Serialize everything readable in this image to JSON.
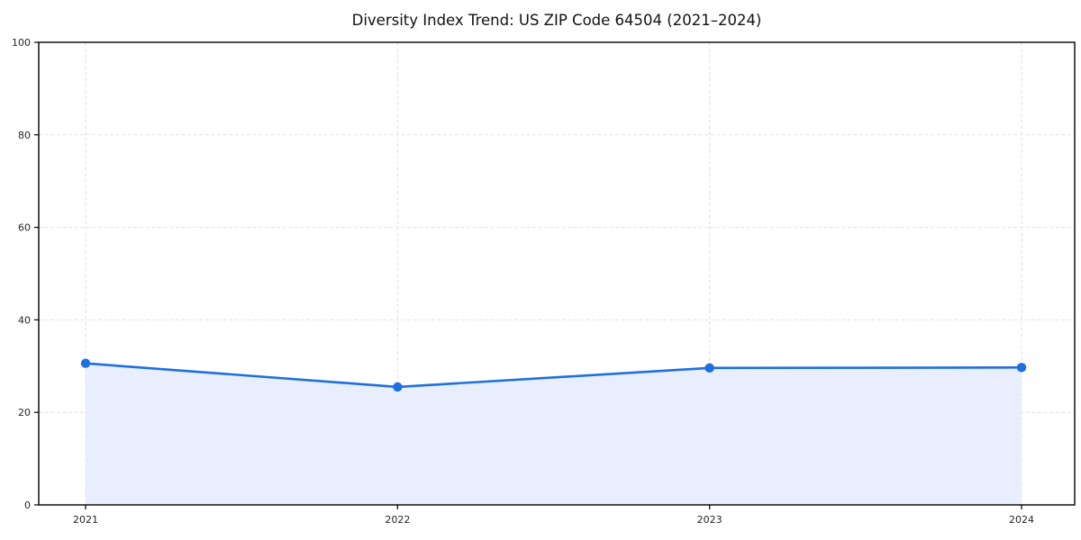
{
  "figure": {
    "background": "#ffffff"
  },
  "chart_data": {
    "type": "area",
    "title": "Diversity Index Trend: US ZIP Code 64504 (2021–2024)",
    "categories": [
      "2021",
      "2022",
      "2023",
      "2024"
    ],
    "series": [
      {
        "name": "Diversity Index",
        "values": [
          30.6,
          25.5,
          29.6,
          29.7
        ]
      }
    ],
    "xlabel": "",
    "ylabel": "",
    "ylim": [
      0,
      100
    ],
    "yticks": [
      0,
      20,
      40,
      60,
      80,
      100
    ],
    "grid": "dashed-both-axes",
    "legend": "none",
    "style": {
      "line_color": "#1f6fe0",
      "marker_color": "#1f6fe0",
      "fill_color": "#e8eefb",
      "grid_color": "#e2e2e2",
      "spine_color": "#000000",
      "tick_color": "#000000",
      "tick_label_color": "#262626",
      "title_color": "#111111"
    }
  }
}
